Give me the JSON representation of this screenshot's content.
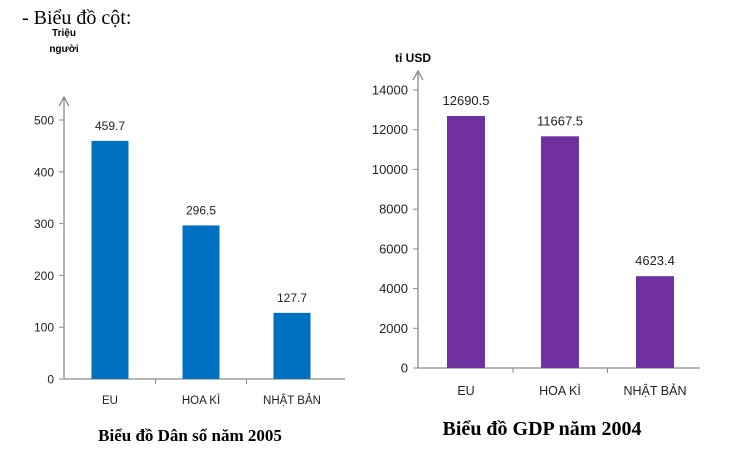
{
  "heading": "-  Biểu đồ cột:",
  "chart_data": [
    {
      "type": "bar",
      "title": "Biểu đồ Dân số năm 2005",
      "ylabel": "Triệu người",
      "ylabel_lines": [
        "Triệu",
        "người"
      ],
      "categories": [
        "EU",
        "HOA KÌ",
        "NHẬT BẢN"
      ],
      "values": [
        459.7,
        296.5,
        127.7
      ],
      "data_labels": [
        "459.7",
        "296.5",
        "127.7"
      ],
      "ylim": [
        0,
        500
      ],
      "yticks": [
        0,
        100,
        200,
        300,
        400,
        500
      ],
      "grid": false,
      "color": "#0070C0"
    },
    {
      "type": "bar",
      "title": "Biểu đồ GDP năm 2004",
      "ylabel": "tỉ USD",
      "ylabel_lines": [
        "tỉ USD"
      ],
      "categories": [
        "EU",
        "HOA KÌ",
        "NHẬT BẢN"
      ],
      "values": [
        12690.5,
        11667.5,
        4623.4
      ],
      "data_labels": [
        "12690.5",
        "11667.5",
        "4623.4"
      ],
      "ylim": [
        0,
        14000
      ],
      "yticks": [
        0,
        2000,
        4000,
        6000,
        8000,
        10000,
        12000,
        14000
      ],
      "grid": false,
      "color": "#7030A0"
    }
  ]
}
